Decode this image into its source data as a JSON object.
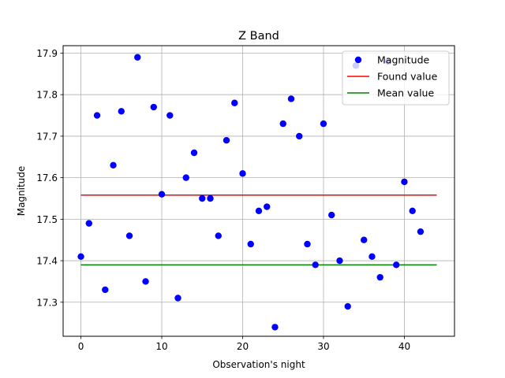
{
  "chart_data": {
    "type": "scatter",
    "title": "Z Band",
    "xlabel": "Observation's night",
    "ylabel": "Magnitude",
    "xlim": [
      -2.2,
      46.2
    ],
    "ylim": [
      17.218,
      17.918
    ],
    "xticks": [
      0,
      10,
      20,
      30,
      40
    ],
    "yticks": [
      17.3,
      17.4,
      17.5,
      17.6,
      17.7,
      17.8,
      17.9
    ],
    "xtick_labels": [
      "0",
      "10",
      "20",
      "30",
      "40"
    ],
    "ytick_labels": [
      "17.3",
      "17.4",
      "17.5",
      "17.6",
      "17.7",
      "17.8",
      "17.9"
    ],
    "grid": true,
    "legend_position": "top-right",
    "series": [
      {
        "name": "Magnitude",
        "kind": "scatter",
        "color": "#0000ff",
        "x": [
          0,
          1,
          2,
          3,
          4,
          5,
          6,
          7,
          8,
          9,
          10,
          11,
          12,
          13,
          14,
          15,
          16,
          17,
          18,
          19,
          20,
          21,
          22,
          23,
          24,
          25,
          26,
          27,
          28,
          29,
          30,
          31,
          32,
          33,
          34,
          35,
          36,
          37,
          38,
          39,
          40,
          41,
          42
        ],
        "y": [
          17.41,
          17.49,
          17.75,
          17.33,
          17.63,
          17.76,
          17.46,
          17.89,
          17.35,
          17.77,
          17.56,
          17.75,
          17.31,
          17.6,
          17.66,
          17.55,
          17.55,
          17.46,
          17.69,
          17.78,
          17.61,
          17.44,
          17.52,
          17.53,
          17.24,
          17.73,
          17.79,
          17.7,
          17.44,
          17.39,
          17.73,
          17.51,
          17.4,
          17.29,
          17.87,
          17.45,
          17.41,
          17.36,
          17.88,
          17.39,
          17.59,
          17.52,
          17.47
        ]
      },
      {
        "name": "Found value",
        "kind": "line",
        "color": "#ff0000",
        "x": [
          0,
          44
        ],
        "y": [
          17.558,
          17.558
        ]
      },
      {
        "name": "Mean value",
        "kind": "line",
        "color": "#008000",
        "x": [
          0,
          44
        ],
        "y": [
          17.39,
          17.39
        ]
      }
    ]
  }
}
